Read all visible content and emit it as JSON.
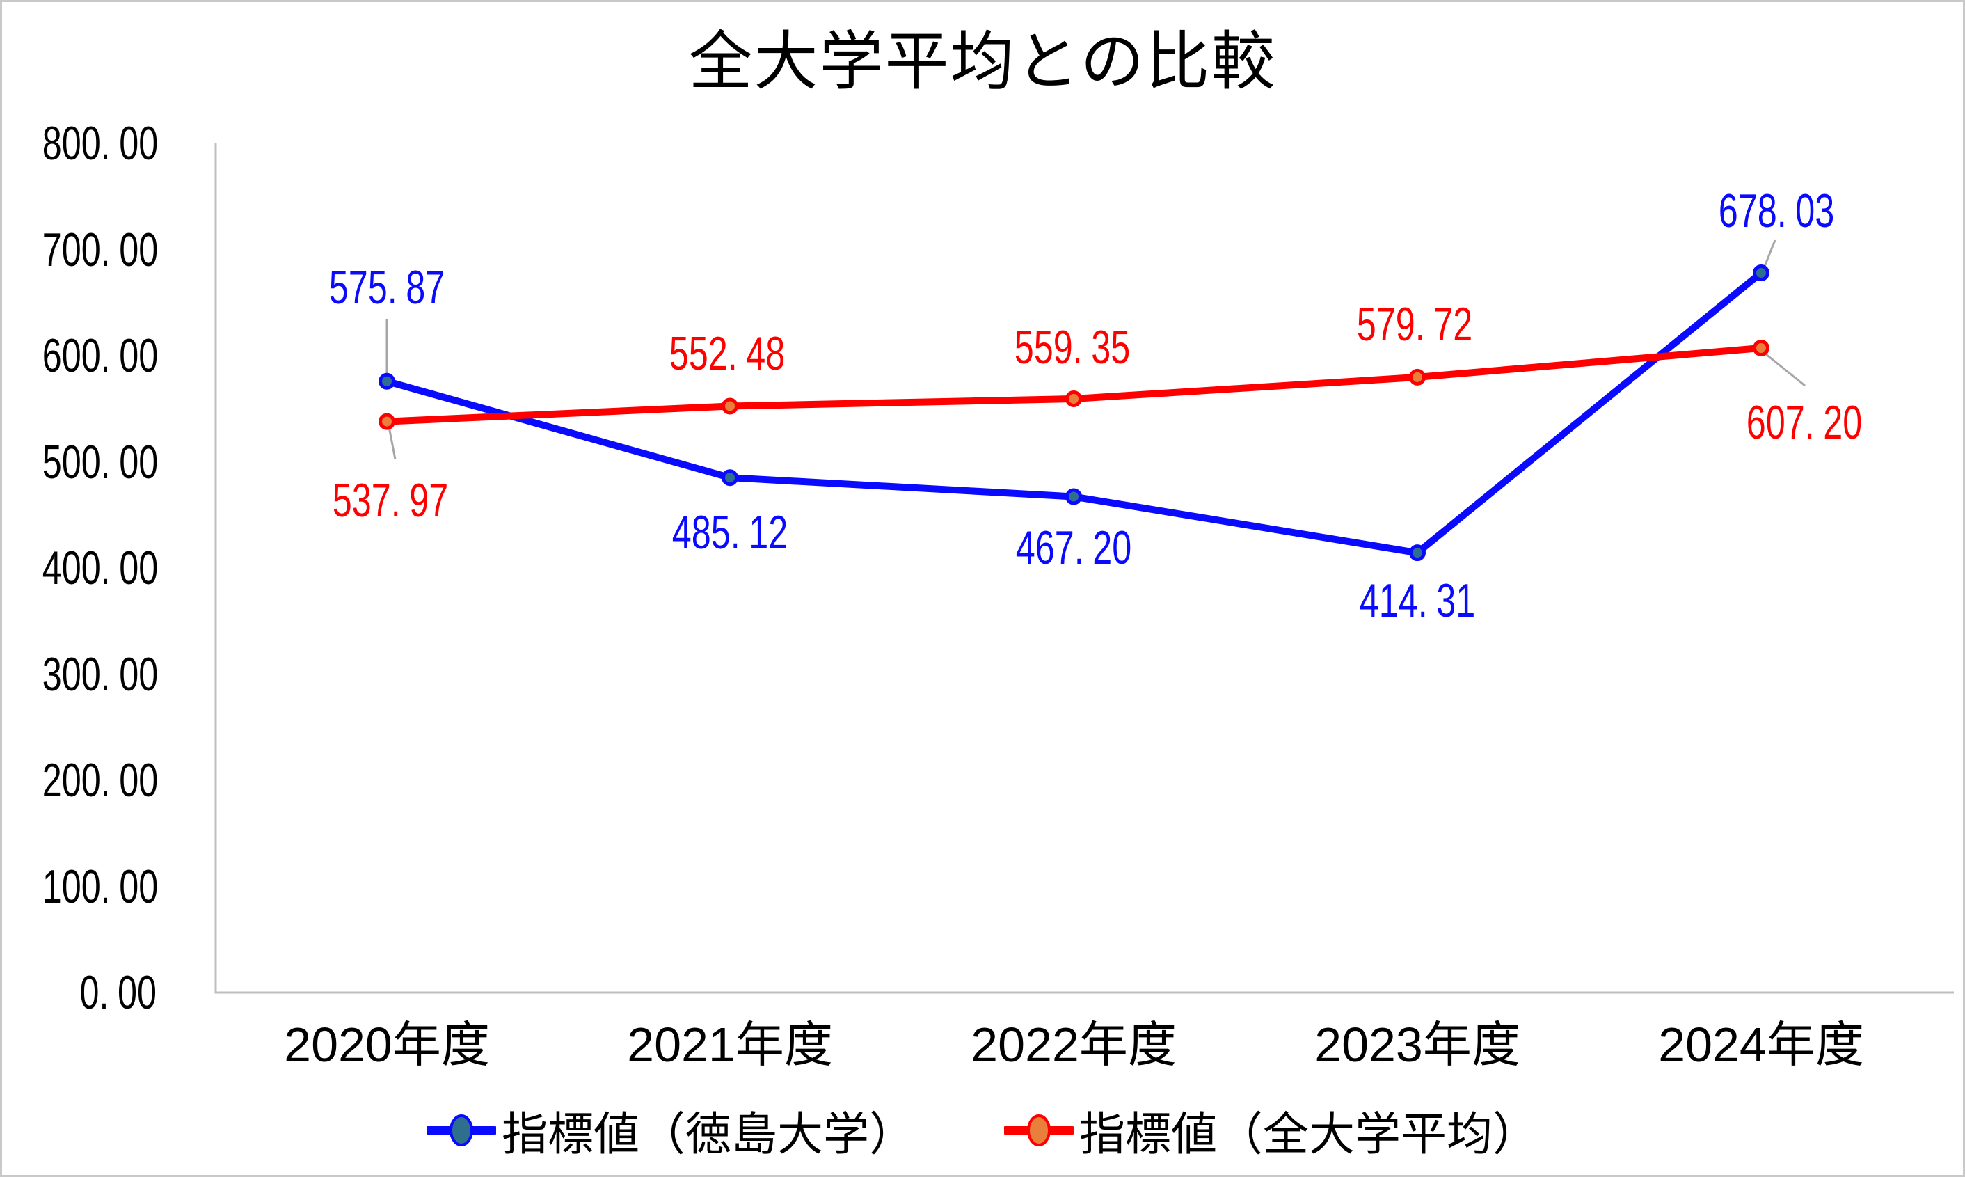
{
  "page": {
    "background": "#ffffff",
    "frame_border_color": "#c9c9c9"
  },
  "chart_data": {
    "type": "line",
    "title": "全大学平均との比較",
    "categories": [
      "2020年度",
      "2021年度",
      "2022年度",
      "2023年度",
      "2024年度"
    ],
    "series": [
      {
        "name": "指標値（徳島大学）",
        "values": [
          575.87,
          485.12,
          467.2,
          414.31,
          678.03
        ],
        "labels": [
          "575.87",
          "485.12",
          "467.20",
          "414.31",
          "678.03"
        ],
        "line_color": "#0a0aff",
        "marker_fill": "#2e6f8e",
        "label_color": "#0a0aff"
      },
      {
        "name": "指標値（全大学平均）",
        "values": [
          537.97,
          552.48,
          559.35,
          579.72,
          607.2
        ],
        "labels": [
          "537.97",
          "552.48",
          "559.35",
          "579.72",
          "607.20"
        ],
        "line_color": "#fe0000",
        "marker_fill": "#e8803c",
        "label_color": "#fe0000"
      }
    ],
    "yticks": [
      "0.00",
      "100.00",
      "200.00",
      "300.00",
      "400.00",
      "500.00",
      "600.00",
      "700.00",
      "800.00"
    ],
    "ylim": [
      0,
      800
    ],
    "ytick_step": 100,
    "xlabel": "",
    "ylabel": "",
    "grid": false,
    "legend_position": "bottom",
    "axis_color": "#bfbfbf",
    "leader_line_color": "#a6a6a6"
  }
}
